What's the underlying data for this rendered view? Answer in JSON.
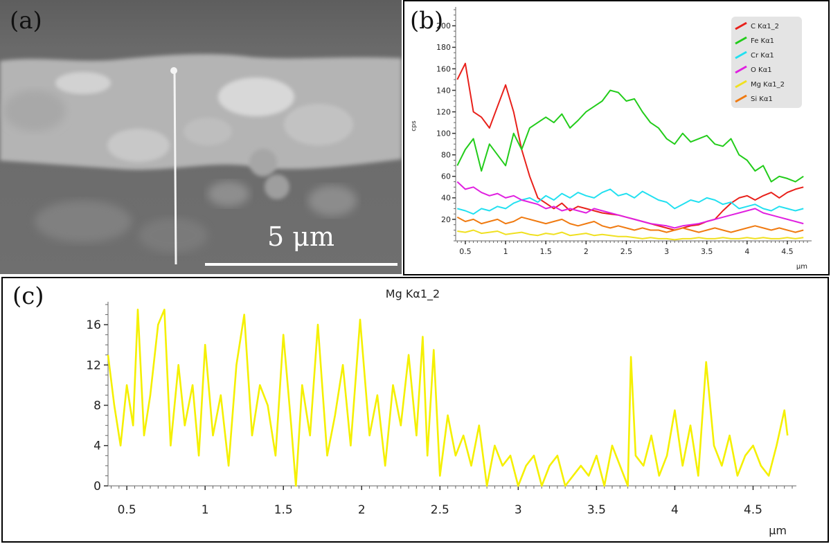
{
  "panel_a": {
    "label": "(a)",
    "scale_bar_text": "5 μm"
  },
  "panel_b": {
    "label": "(b)"
  },
  "panel_c": {
    "label": "(c)"
  },
  "chart_data": [
    {
      "type": "line",
      "ylabel": "cps",
      "xlabel": "μm",
      "xlim": [
        0.38,
        4.75
      ],
      "ylim": [
        0,
        215
      ],
      "xticks": [
        0.5,
        1,
        1.5,
        2,
        2.5,
        3,
        3.5,
        4,
        4.5
      ],
      "yticks": [
        20,
        40,
        60,
        80,
        100,
        120,
        140,
        160,
        180,
        200
      ],
      "x": [
        0.4,
        0.5,
        0.6,
        0.7,
        0.8,
        0.9,
        1.0,
        1.1,
        1.2,
        1.3,
        1.4,
        1.5,
        1.6,
        1.7,
        1.8,
        1.9,
        2.0,
        2.1,
        2.2,
        2.3,
        2.4,
        2.5,
        2.6,
        2.7,
        2.8,
        2.9,
        3.0,
        3.1,
        3.2,
        3.3,
        3.4,
        3.5,
        3.6,
        3.7,
        3.8,
        3.9,
        4.0,
        4.1,
        4.2,
        4.3,
        4.4,
        4.5,
        4.6,
        4.7
      ],
      "legend_position": "top-right",
      "series": [
        {
          "name": "C Kα1_2",
          "color": "#e8201a",
          "values": [
            150,
            165,
            120,
            115,
            105,
            125,
            145,
            120,
            85,
            60,
            40,
            35,
            30,
            35,
            28,
            32,
            30,
            28,
            26,
            25,
            24,
            22,
            20,
            18,
            16,
            14,
            12,
            10,
            12,
            14,
            15,
            18,
            20,
            28,
            35,
            40,
            42,
            38,
            42,
            45,
            40,
            45,
            48,
            50
          ]
        },
        {
          "name": "Fe Kα1",
          "color": "#22cc1a",
          "values": [
            70,
            85,
            95,
            65,
            90,
            80,
            70,
            100,
            85,
            105,
            110,
            115,
            110,
            118,
            105,
            112,
            120,
            125,
            130,
            140,
            138,
            130,
            132,
            120,
            110,
            105,
            95,
            90,
            100,
            92,
            95,
            98,
            90,
            88,
            95,
            80,
            75,
            65,
            70,
            55,
            60,
            58,
            55,
            60
          ]
        },
        {
          "name": "Cr Kα1",
          "color": "#22e0f0",
          "values": [
            30,
            28,
            25,
            30,
            28,
            32,
            30,
            35,
            38,
            40,
            36,
            42,
            38,
            44,
            40,
            45,
            42,
            40,
            45,
            48,
            42,
            44,
            40,
            46,
            42,
            38,
            36,
            30,
            34,
            38,
            36,
            40,
            38,
            34,
            36,
            30,
            32,
            34,
            30,
            28,
            32,
            30,
            28,
            30
          ]
        },
        {
          "name": "O Kα1",
          "color": "#e020e0",
          "values": [
            55,
            48,
            50,
            45,
            42,
            44,
            40,
            42,
            38,
            36,
            34,
            30,
            32,
            28,
            30,
            28,
            26,
            30,
            28,
            26,
            24,
            22,
            20,
            18,
            16,
            15,
            14,
            12,
            14,
            15,
            16,
            18,
            20,
            22,
            24,
            26,
            28,
            30,
            26,
            24,
            22,
            20,
            18,
            16
          ]
        },
        {
          "name": "Mg Kα1_2",
          "color": "#f0e020",
          "values": [
            9,
            8,
            10,
            7,
            8,
            9,
            6,
            7,
            8,
            6,
            5,
            7,
            6,
            8,
            5,
            6,
            7,
            5,
            6,
            5,
            4,
            4,
            3,
            2,
            3,
            2,
            2,
            1,
            2,
            2,
            3,
            2,
            2,
            3,
            2,
            2,
            3,
            2,
            3,
            2,
            2,
            3,
            2,
            3
          ]
        },
        {
          "name": "Si Kα1",
          "color": "#f07a10",
          "values": [
            22,
            18,
            20,
            16,
            18,
            20,
            16,
            18,
            22,
            20,
            18,
            16,
            18,
            20,
            16,
            14,
            16,
            18,
            14,
            12,
            14,
            12,
            10,
            12,
            10,
            10,
            8,
            10,
            12,
            10,
            8,
            10,
            12,
            10,
            8,
            10,
            12,
            14,
            12,
            10,
            12,
            10,
            8,
            10
          ]
        }
      ]
    },
    {
      "type": "line",
      "title": "Mg Kα1_2",
      "xlabel": "μm",
      "xlim": [
        0.38,
        4.75
      ],
      "ylim": [
        0,
        18
      ],
      "xticks": [
        0.5,
        1,
        1.5,
        2,
        2.5,
        3,
        3.5,
        4,
        4.5
      ],
      "yticks": [
        0,
        4,
        8,
        12,
        16
      ],
      "series": [
        {
          "name": "Mg Kα1_2",
          "color": "#f5f000",
          "x": [
            0.38,
            0.42,
            0.46,
            0.5,
            0.54,
            0.57,
            0.61,
            0.65,
            0.7,
            0.74,
            0.78,
            0.83,
            0.87,
            0.92,
            0.96,
            1.0,
            1.05,
            1.1,
            1.15,
            1.2,
            1.25,
            1.3,
            1.35,
            1.4,
            1.45,
            1.5,
            1.55,
            1.58,
            1.62,
            1.67,
            1.72,
            1.78,
            1.83,
            1.88,
            1.93,
            1.99,
            2.05,
            2.1,
            2.15,
            2.2,
            2.25,
            2.3,
            2.35,
            2.39,
            2.42,
            2.46,
            2.5,
            2.55,
            2.6,
            2.65,
            2.7,
            2.75,
            2.8,
            2.85,
            2.9,
            2.95,
            3.0,
            3.05,
            3.1,
            3.15,
            3.2,
            3.25,
            3.3,
            3.35,
            3.4,
            3.45,
            3.5,
            3.55,
            3.6,
            3.65,
            3.7,
            3.72,
            3.75,
            3.8,
            3.85,
            3.9,
            3.95,
            4.0,
            4.05,
            4.1,
            4.15,
            4.2,
            4.25,
            4.3,
            4.35,
            4.4,
            4.45,
            4.5,
            4.55,
            4.6,
            4.65,
            4.7,
            4.72
          ],
          "values": [
            13,
            8,
            4,
            10,
            6,
            17.5,
            5,
            9,
            16,
            17.5,
            4,
            12,
            6,
            10,
            3,
            14,
            5,
            9,
            2,
            12,
            17,
            5,
            10,
            8,
            3,
            15,
            6,
            0,
            10,
            5,
            16,
            3,
            7,
            12,
            4,
            16.5,
            5,
            9,
            2,
            10,
            6,
            13,
            5,
            14.8,
            3,
            13.5,
            1,
            7,
            3,
            5,
            2,
            6,
            0,
            4,
            2,
            3,
            0,
            2,
            3,
            0,
            2,
            3,
            0,
            1,
            2,
            1,
            3,
            0,
            4,
            2,
            0,
            12.8,
            3,
            2,
            5,
            1,
            3,
            7.5,
            2,
            6,
            1,
            12.3,
            4,
            2,
            5,
            1,
            3,
            4,
            2,
            1,
            4,
            7.5,
            5
          ]
        }
      ]
    }
  ]
}
